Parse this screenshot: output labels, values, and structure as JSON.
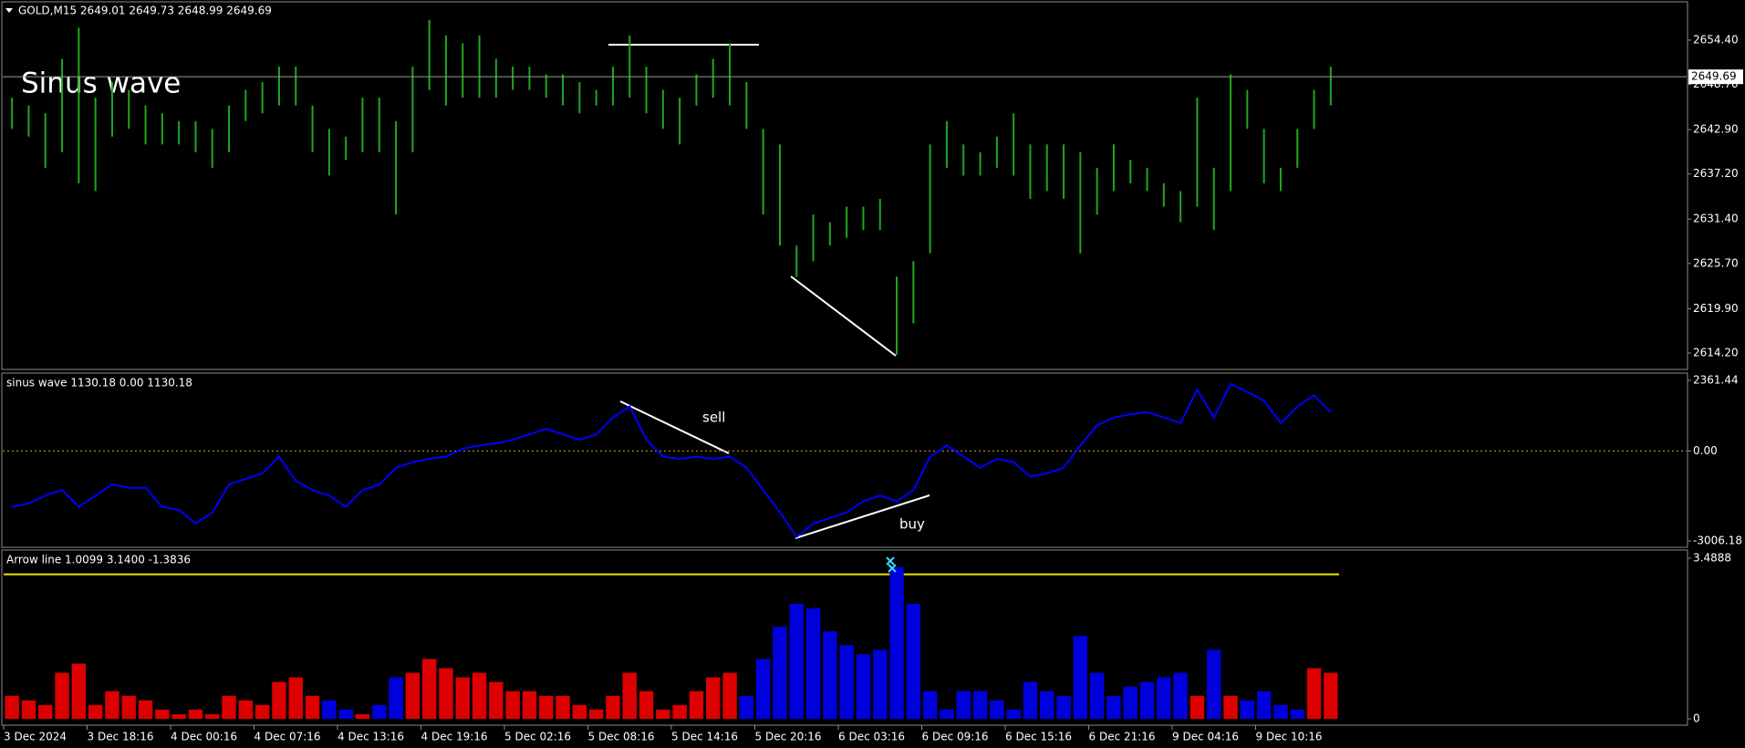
{
  "chart_data": [
    {
      "type": "hilo",
      "title": "GOLD,M15  2649.01 2649.73 2648.99 2649.69",
      "annotation": "Sinus wave",
      "color": "#1fa81f",
      "categories": [
        "3 Dec 2024",
        null,
        null,
        null,
        null,
        "3 Dec 18:16",
        null,
        null,
        null,
        null,
        "4 Dec 00:16",
        null,
        null,
        null,
        null,
        "4 Dec 07:16",
        null,
        null,
        null,
        null,
        "4 Dec 13:16",
        null,
        null,
        null,
        null,
        "4 Dec 19:16",
        null,
        null,
        null,
        null,
        "5 Dec 02:16",
        null,
        null,
        null,
        null,
        "5 Dec 08:16",
        null,
        null,
        null,
        null,
        "5 Dec 14:16",
        null,
        null,
        null,
        null,
        "5 Dec 20:16",
        null,
        null,
        null,
        null,
        "6 Dec 03:16",
        null,
        null,
        null,
        null,
        "6 Dec 09:16",
        null,
        null,
        null,
        null,
        "6 Dec 15:16",
        null,
        null,
        null,
        null,
        "6 Dec 21:16",
        null,
        null,
        null,
        null,
        "9 Dec 04:16",
        null,
        null,
        null,
        null,
        "9 Dec 10:16",
        null,
        null,
        null,
        null
      ],
      "high": [
        2647,
        2646,
        2645,
        2652,
        2656,
        2647,
        2649,
        2648,
        2646,
        2645,
        2644,
        2644,
        2643,
        2646,
        2648,
        2649,
        2651,
        2651,
        2646,
        2643,
        2642,
        2647,
        2647,
        2644,
        2651,
        2657,
        2655,
        2654,
        2655,
        2652,
        2651,
        2651,
        2650,
        2650,
        2649,
        2648,
        2651,
        2655,
        2651,
        2648,
        2647,
        2650,
        2652,
        2654,
        2649,
        2643,
        2641,
        2628,
        2632,
        2631,
        2633,
        2633,
        2634,
        2624,
        2626,
        2641,
        2644,
        2641,
        2640,
        2642,
        2645,
        2641,
        2641,
        2641,
        2640,
        2638,
        2641,
        2639,
        2638,
        2636,
        2635,
        2647,
        2638,
        2650,
        2648,
        2643,
        2638,
        2643,
        2648,
        2651
      ],
      "low": [
        2643,
        2642,
        2638,
        2640,
        2636,
        2635,
        2642,
        2643,
        2641,
        2641,
        2641,
        2640,
        2638,
        2640,
        2644,
        2645,
        2646,
        2646,
        2640,
        2637,
        2639,
        2640,
        2640,
        2632,
        2640,
        2648,
        2646,
        2647,
        2647,
        2647,
        2648,
        2648,
        2647,
        2646,
        2645,
        2646,
        2646,
        2647,
        2645,
        2643,
        2641,
        2646,
        2647,
        2646,
        2643,
        2632,
        2628,
        2624,
        2626,
        2628,
        2629,
        2630,
        2630,
        2614,
        2618,
        2627,
        2638,
        2637,
        2637,
        2638,
        2637,
        2634,
        2635,
        2634,
        2627,
        2632,
        2635,
        2636,
        2635,
        2633,
        2631,
        2633,
        2630,
        2635,
        2643,
        2636,
        2635,
        2638,
        2643,
        2646
      ],
      "last_price": 2649.69,
      "ylim": [
        2612.09,
        2659.32
      ],
      "yticks": [
        {
          "value": 2654.4,
          "label": "2654.40"
        },
        {
          "value": 2648.7,
          "label": "2648.70"
        },
        {
          "value": 2642.9,
          "label": "2642.90"
        },
        {
          "value": 2637.2,
          "label": "2637.20"
        },
        {
          "value": 2631.4,
          "label": "2631.40"
        },
        {
          "value": 2625.7,
          "label": "2625.70"
        },
        {
          "value": 2619.9,
          "label": "2619.90"
        },
        {
          "value": 2614.2,
          "label": "2614.20"
        }
      ]
    },
    {
      "type": "line",
      "title": "sinus wave 1130.18 0.00 1130.18",
      "annotations": [
        "sell",
        "buy"
      ],
      "color": "#0000ff",
      "hline": 0,
      "hline_color": "#d4a017",
      "values": [
        -1865,
        -1753,
        -1492,
        -1306,
        -1865,
        -1492,
        -1119,
        -1231,
        -1231,
        -1865,
        -1977,
        -2425,
        -2052,
        -1119,
        -933,
        -746,
        -187,
        -1007,
        -1306,
        -1492,
        -1865,
        -1306,
        -1119,
        -560,
        -373,
        -261,
        -187,
        75,
        187,
        261,
        373,
        560,
        746,
        560,
        373,
        560,
        1119,
        1492,
        373,
        -187,
        -261,
        -187,
        -261,
        -187,
        -560,
        -1306,
        -2052,
        -2872,
        -2425,
        -2238,
        -2052,
        -1679,
        -1492,
        -1679,
        -1306,
        -187,
        187,
        -187,
        -560,
        -261,
        -373,
        -858,
        -746,
        -560,
        187,
        858,
        1119,
        1231,
        1306,
        1119,
        933,
        2052,
        1119,
        2238,
        1977,
        1679,
        933,
        1492,
        1865,
        1306
      ],
      "ylim": [
        -3220,
        2605
      ],
      "yticks": [
        2361.44,
        {
          "value": 0,
          "label": "0.00"
        },
        -3006.18
      ]
    },
    {
      "type": "bar",
      "title": "Arrow line 1.0099 3.1400 -1.3836",
      "hline": 3.14,
      "hline_color": "#e8e800",
      "values": [
        0.5,
        0.4,
        0.3,
        1.0,
        1.2,
        0.3,
        0.6,
        0.5,
        0.4,
        0.2,
        0.1,
        0.2,
        0.1,
        0.5,
        0.4,
        0.3,
        0.8,
        0.9,
        0.5,
        0.4,
        0.2,
        0.1,
        0.3,
        0.9,
        1.0,
        1.3,
        1.1,
        0.9,
        1.0,
        0.8,
        0.6,
        0.6,
        0.5,
        0.5,
        0.3,
        0.2,
        0.5,
        1.0,
        0.6,
        0.2,
        0.3,
        0.6,
        0.9,
        1.0,
        0.5,
        1.3,
        2.0,
        2.5,
        2.4,
        1.9,
        1.6,
        1.4,
        1.5,
        3.3,
        2.5,
        0.6,
        0.2,
        0.6,
        0.6,
        0.4,
        0.2,
        0.8,
        0.6,
        0.5,
        1.8,
        1.0,
        0.5,
        0.7,
        0.8,
        0.9,
        1.0,
        0.5,
        1.5,
        0.5,
        0.4,
        0.6,
        0.3,
        0.2,
        1.1,
        1.0
      ],
      "colors": [
        "#dd0000",
        "#dd0000",
        "#dd0000",
        "#dd0000",
        "#dd0000",
        "#dd0000",
        "#dd0000",
        "#dd0000",
        "#dd0000",
        "#dd0000",
        "#dd0000",
        "#dd0000",
        "#dd0000",
        "#dd0000",
        "#dd0000",
        "#dd0000",
        "#dd0000",
        "#dd0000",
        "#dd0000",
        "#0000dd",
        "#0000dd",
        "#dd0000",
        "#0000dd",
        "#0000dd",
        "#dd0000",
        "#dd0000",
        "#dd0000",
        "#dd0000",
        "#dd0000",
        "#dd0000",
        "#dd0000",
        "#dd0000",
        "#dd0000",
        "#dd0000",
        "#dd0000",
        "#dd0000",
        "#dd0000",
        "#dd0000",
        "#dd0000",
        "#dd0000",
        "#dd0000",
        "#dd0000",
        "#dd0000",
        "#dd0000",
        "#0000dd",
        "#0000dd",
        "#0000dd",
        "#0000dd",
        "#0000dd",
        "#0000dd",
        "#0000dd",
        "#0000dd",
        "#0000dd",
        "#0000dd",
        "#0000dd",
        "#0000dd",
        "#0000dd",
        "#0000dd",
        "#0000dd",
        "#0000dd",
        "#0000dd",
        "#0000dd",
        "#0000dd",
        "#0000dd",
        "#0000dd",
        "#0000dd",
        "#0000dd",
        "#0000dd",
        "#0000dd",
        "#0000dd",
        "#0000dd",
        "#dd0000",
        "#0000dd",
        "#dd0000",
        "#0000dd",
        "#0000dd",
        "#0000dd",
        "#0000dd",
        "#dd0000",
        "#dd0000"
      ],
      "ylim": [
        -0.139,
        3.667
      ],
      "yticks": [
        3.4888,
        0
      ]
    }
  ]
}
